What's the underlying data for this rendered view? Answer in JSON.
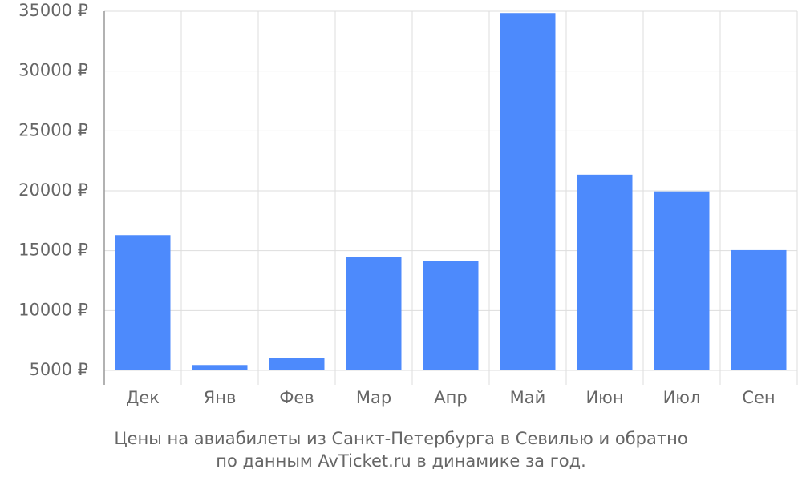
{
  "chart_data": {
    "type": "bar",
    "title": "Цены на авиабилеты из Санкт-Петербурга в Севилью и обратно",
    "subtitle": "по данным AvTicket.ru в динамике за год.",
    "categories": [
      "Дек",
      "Янв",
      "Фев",
      "Мар",
      "Апр",
      "Май",
      "Июн",
      "Июл",
      "Сен"
    ],
    "values": [
      16300,
      5450,
      6050,
      14450,
      14150,
      34850,
      21350,
      19950,
      15050
    ],
    "color": "#4d8afc",
    "ylim": [
      5000,
      35000
    ],
    "yticks": [
      {
        "value": 5000,
        "label": "5000 ₽"
      },
      {
        "value": 10000,
        "label": "10000 ₽"
      },
      {
        "value": 15000,
        "label": "15000 ₽"
      },
      {
        "value": 20000,
        "label": "20000 ₽"
      },
      {
        "value": 25000,
        "label": "25000 ₽"
      },
      {
        "value": 30000,
        "label": "30000 ₽"
      },
      {
        "value": 35000,
        "label": "35000 ₽"
      }
    ],
    "grid": true
  }
}
